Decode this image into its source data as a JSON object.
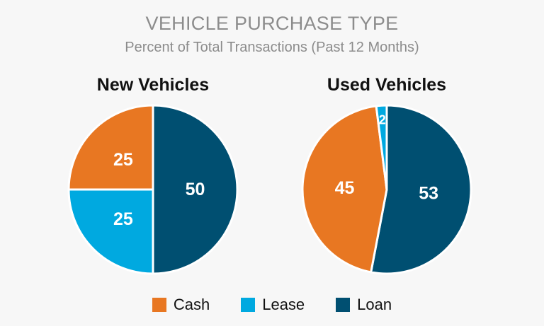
{
  "title": "VEHICLE PURCHASE TYPE",
  "subtitle": "Percent of Total Transactions (Past 12 Months)",
  "colors": {
    "Cash": "#e87722",
    "Lease": "#00a9e0",
    "Loan": "#004f71"
  },
  "legend": [
    "Cash",
    "Lease",
    "Loan"
  ],
  "chart_data": [
    {
      "type": "pie",
      "title": "New Vehicles",
      "categories": [
        "Loan",
        "Lease",
        "Cash"
      ],
      "values": [
        50,
        25,
        25
      ]
    },
    {
      "type": "pie",
      "title": "Used Vehicles",
      "categories": [
        "Loan",
        "Cash",
        "Lease"
      ],
      "values": [
        53,
        45,
        2
      ]
    }
  ]
}
